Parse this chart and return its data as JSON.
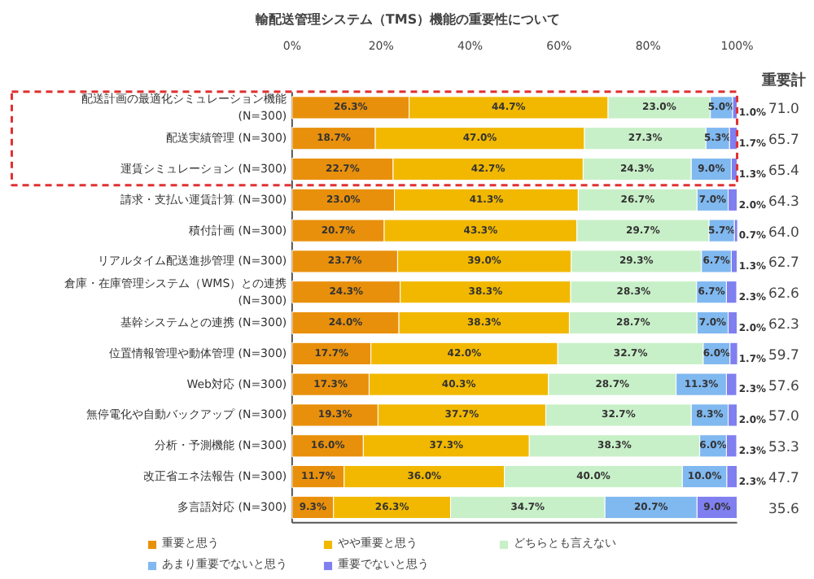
{
  "chart_data": {
    "type": "bar",
    "orientation": "horizontal",
    "stacked": true,
    "title": "輸配送管理システム（TMS）機能の重要性について",
    "categories": [
      "配送計画の最適化シミュレーション機能\n(N=300)",
      "配送実績管理 (N=300)",
      "運賃シミュレーション (N=300)",
      "請求・支払い運賃計算 (N=300)",
      "積付計画 (N=300)",
      "リアルタイム配送進捗管理 (N=300)",
      "倉庫・在庫管理システム（WMS）との連携\n(N=300)",
      "基幹システムとの連携 (N=300)",
      "位置情報管理や動体管理 (N=300)",
      "Web対応 (N=300)",
      "無停電化や自動バックアップ (N=300)",
      "分析・予測機能 (N=300)",
      "改正省エネ法報告 (N=300)",
      "多言語対応 (N=300)"
    ],
    "series": [
      {
        "name": "重要と思う",
        "color": "#e8900c",
        "values": [
          26.3,
          18.7,
          22.7,
          23.0,
          20.7,
          23.7,
          24.3,
          24.0,
          17.7,
          17.3,
          19.3,
          16.0,
          11.7,
          9.3
        ],
        "value_labels": [
          "26.3%",
          "18.7%",
          "22.7%",
          "23.0%",
          "20.7%",
          "23.7%",
          "24.3%",
          "24.0%",
          "17.7%",
          "17.3%",
          "19.3%",
          "16.0%",
          "11.7%",
          "9.3%"
        ]
      },
      {
        "name": "やや重要と思う",
        "color": "#f2b800",
        "values": [
          44.7,
          47.0,
          42.7,
          41.3,
          43.3,
          39.0,
          38.3,
          38.3,
          42.0,
          40.3,
          37.7,
          37.3,
          36.0,
          26.3
        ],
        "value_labels": [
          "44.7%",
          "47.0%",
          "42.7%",
          "41.3%",
          "43.3%",
          "39.0%",
          "38.3%",
          "38.3%",
          "42.0%",
          "40.3%",
          "37.7%",
          "37.3%",
          "36.0%",
          "26.3%"
        ]
      },
      {
        "name": "どちらとも言えない",
        "color": "#c8f0c8",
        "values": [
          23.0,
          27.3,
          24.3,
          26.7,
          29.7,
          29.3,
          28.3,
          28.7,
          32.7,
          28.7,
          32.7,
          38.3,
          40.0,
          34.7
        ],
        "value_labels": [
          "23.0%",
          "27.3%",
          "24.3%",
          "26.7%",
          "29.7%",
          "29.3%",
          "28.3%",
          "28.7%",
          "32.7%",
          "28.7%",
          "32.7%",
          "38.3%",
          "40.0%",
          "34.7%"
        ]
      },
      {
        "name": "あまり重要でないと思う",
        "color": "#80b8f0",
        "values": [
          5.0,
          5.3,
          9.0,
          7.0,
          5.7,
          6.7,
          6.7,
          7.0,
          6.0,
          11.3,
          8.3,
          6.0,
          10.0,
          20.7
        ],
        "value_labels": [
          "5.0%",
          "5.3%",
          "9.0%",
          "7.0%",
          "5.7%",
          "6.7%",
          "6.7%",
          "7.0%",
          "6.0%",
          "11.3%",
          "8.3%",
          "6.0%",
          "10.0%",
          "20.7%"
        ]
      },
      {
        "name": "重要でないと思う",
        "color": "#7f7ff0",
        "values": [
          1.0,
          1.7,
          1.3,
          2.0,
          0.7,
          1.3,
          2.3,
          2.0,
          1.7,
          2.3,
          2.0,
          2.3,
          2.3,
          9.0
        ],
        "value_labels": [
          "1.0%",
          "1.7%",
          "1.3%",
          "2.0%",
          "0.7%",
          "1.3%",
          "2.3%",
          "2.0%",
          "1.7%",
          "2.3%",
          "2.0%",
          "2.3%",
          "2.3%",
          "9.0%"
        ]
      }
    ],
    "xlim": [
      0,
      100
    ],
    "xticks": [
      {
        "value": 0,
        "label": "0%"
      },
      {
        "value": 20,
        "label": "20%"
      },
      {
        "value": 40,
        "label": "40%"
      },
      {
        "value": 60,
        "label": "60%"
      },
      {
        "value": 80,
        "label": "80%"
      },
      {
        "value": 100,
        "label": "100%"
      }
    ],
    "legend": "bottom",
    "annotations": [
      "重要計",
      "71.0",
      "65.7",
      "65.4",
      "64.3",
      "64.0",
      "62.7",
      "62.6",
      "62.3",
      "59.7",
      "57.6",
      "57.0",
      "53.3",
      "47.7",
      "35.6"
    ]
  }
}
